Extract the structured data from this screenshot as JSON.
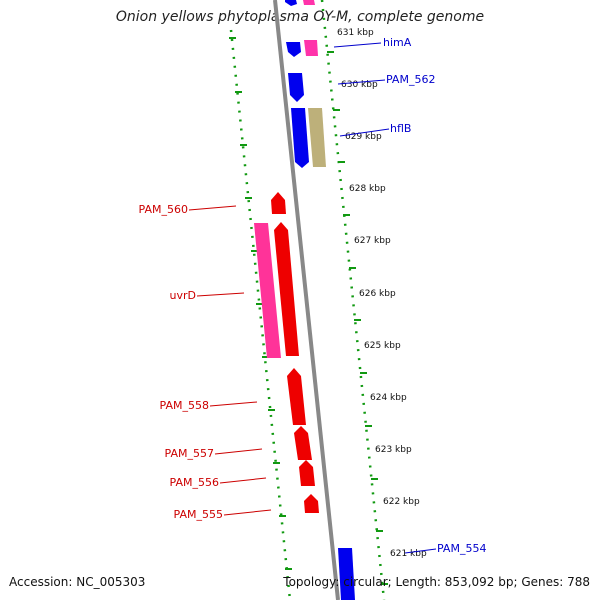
{
  "title": "Onion yellows phytoplasma OY-M, complete genome",
  "footer": {
    "accession": "Accession: NC_005303",
    "summary": "Topology: circular; Length: 853,092 bp; Genes: 788"
  },
  "colors": {
    "forward_cds": "#0000ee",
    "reverse_cds": "#ee0000",
    "rna_forward": "#ff33aa",
    "rna_reverse": "#ff3399",
    "other_feature": "#bdb07a",
    "label_forward": "#0000cc",
    "label_reverse": "#cc0000",
    "tick_dash": "#119911",
    "backbone": "#888888"
  },
  "ticks": [
    "631 kbp",
    "630 kbp",
    "629 kbp",
    "628 kbp",
    "627 kbp",
    "626 kbp",
    "625 kbp",
    "624 kbp",
    "623 kbp",
    "622 kbp",
    "621 kbp"
  ],
  "gene_labels": {
    "forward": [
      "himA",
      "PAM_562",
      "hflB",
      "PAM_554"
    ],
    "reverse": [
      "PAM_560",
      "uvrD",
      "PAM_558",
      "PAM_557",
      "PAM_556",
      "PAM_555"
    ]
  }
}
